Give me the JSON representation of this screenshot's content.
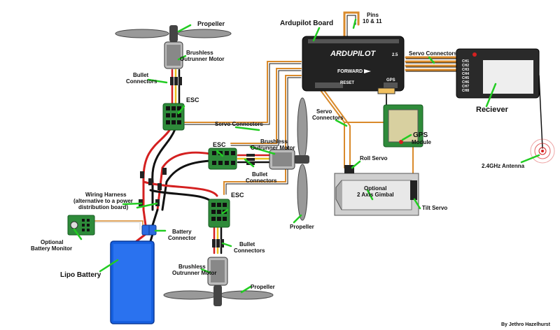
{
  "labels": {
    "propeller_top": "Propeller",
    "motor_top_1": "Brushless",
    "motor_top_2": "Outrunner Motor",
    "bullet_top_1": "Bullet",
    "bullet_top_2": "Connectors",
    "esc_top": "ESC",
    "servo_conn_mid": "Servo Connectors",
    "esc_mid": "ESC",
    "motor_mid_1": "Brushless",
    "motor_mid_2": "Outrunner Motor",
    "bullet_mid_1": "Bullet",
    "bullet_mid_2": "Connectors",
    "wiring_1": "Wiring Harness",
    "wiring_2": "(alternative to a power",
    "wiring_3": "distribution board)",
    "battery_conn_1": "Battery",
    "battery_conn_2": "Connector",
    "esc_bottom": "ESC",
    "bullet_bottom_1": "Bullet",
    "bullet_bottom_2": "Connectors",
    "monitor_1": "Optional",
    "monitor_2": "Battery Monitor",
    "lipo": "Lipo Battery",
    "motor_bottom_1": "Brushless",
    "motor_bottom_2": "Outrunner Motor",
    "propeller_bottom": "Propeller",
    "propeller_right": "Propeller",
    "ardupilot_board": "Ardupilot Board",
    "pins_1": "Pins",
    "pins_2": "10 & 11",
    "servo_conn_right": "Servo Connectors",
    "servo_conn_center_1": "Servo",
    "servo_conn_center_2": "Connectors",
    "gps_1": "GPS",
    "gps_2": "Module",
    "roll_servo": "Roll Servo",
    "gimbal_1": "Optional",
    "gimbal_2": "2 Axis Gimbal",
    "tilt_servo": "Tilt Servo",
    "receiver": "Reciever",
    "antenna": "2.4GHz Antenna",
    "credit": "By Jethro Hazelhurst"
  },
  "board": {
    "logo": "ARDUPILOT",
    "forward": "FORWARD",
    "reset": "RESET",
    "gps_port": "GPS",
    "version": "2.5"
  },
  "receiver_unit": {
    "channels": [
      "CH1",
      "CH2",
      "CH3",
      "CH4",
      "CH5",
      "CH6",
      "CH7",
      "CH8"
    ]
  },
  "colors": {
    "esc_green": "#2e8b3a",
    "pointer_green": "#22cc22",
    "battery_blue": "#1660e0",
    "board_dark": "#222222",
    "servo_orange": "#d98a2b"
  }
}
